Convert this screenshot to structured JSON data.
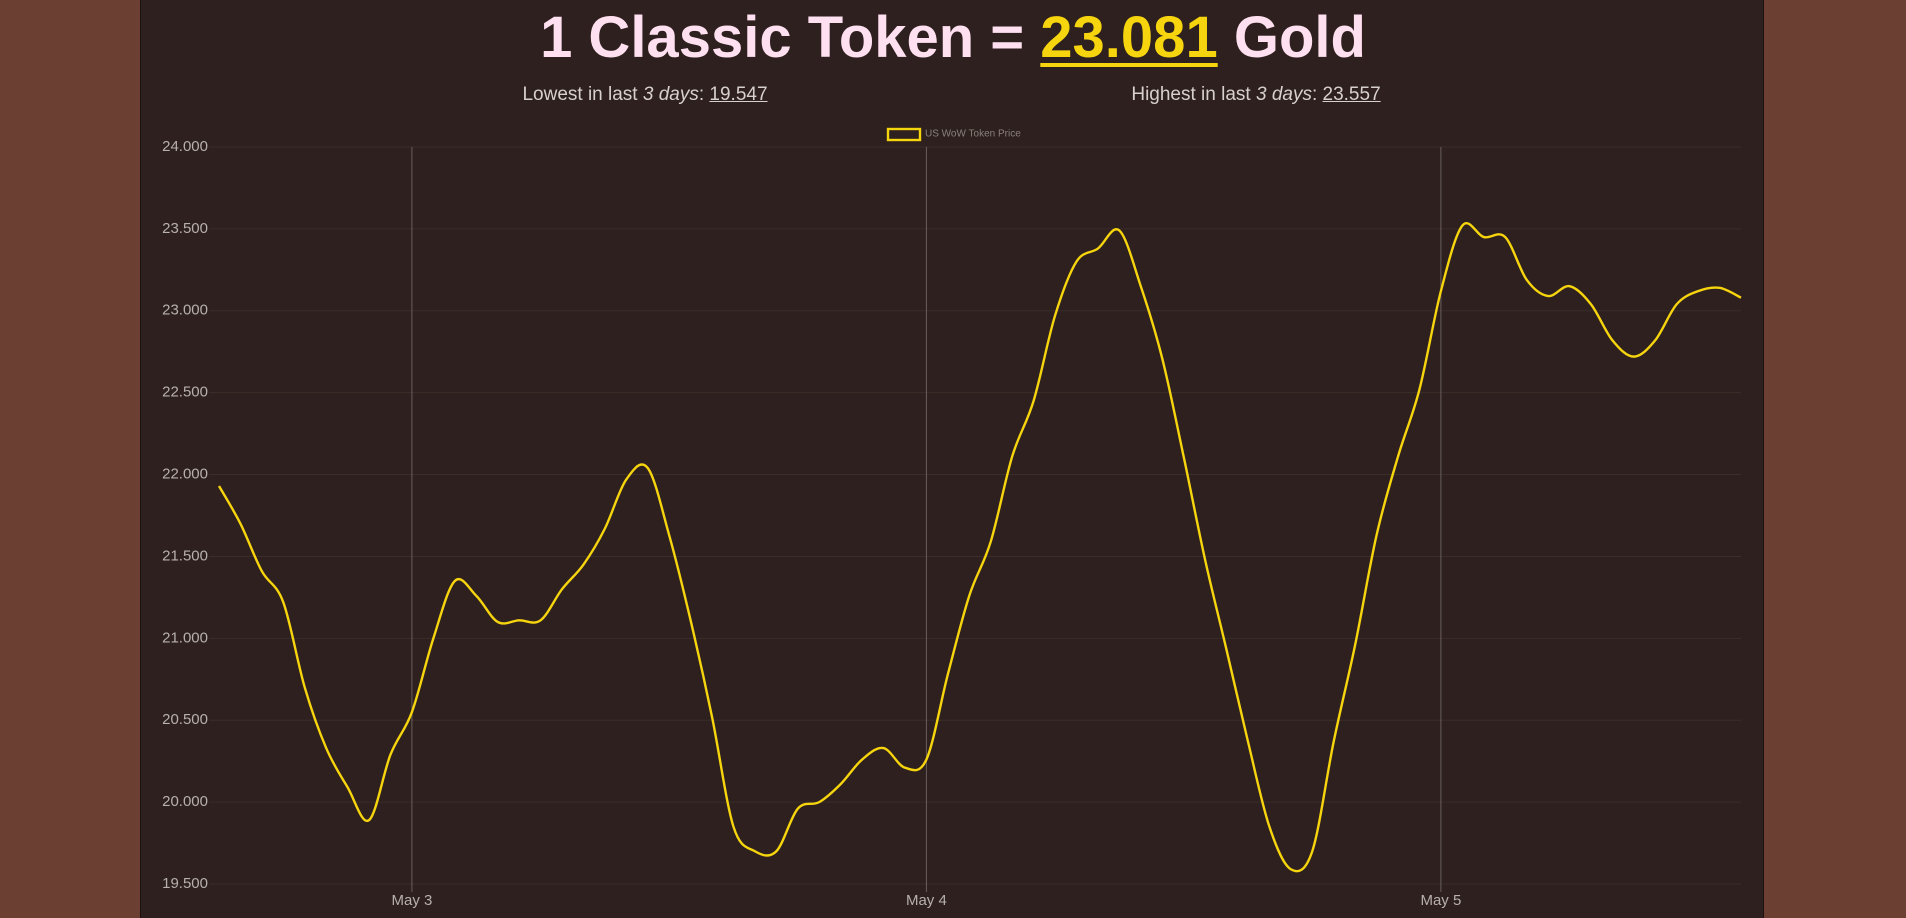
{
  "header": {
    "title": {
      "prefix": "1 Classic Token =",
      "price": "23.081",
      "suffix": "Gold"
    },
    "lowest": {
      "label": "Lowest in last",
      "period": "3 days",
      "separator": ":",
      "value": "19.547"
    },
    "highest": {
      "label": "Highest in last",
      "period": "3 days",
      "separator": ":",
      "value": "23.557"
    }
  },
  "chart_data": {
    "type": "line",
    "categories": [
      null,
      null,
      null,
      null,
      null,
      null,
      null,
      null,
      null,
      "May 3",
      null,
      null,
      null,
      null,
      null,
      null,
      null,
      null,
      null,
      null,
      null,
      null,
      null,
      null,
      null,
      null,
      null,
      null,
      null,
      null,
      null,
      null,
      null,
      "May 4",
      null,
      null,
      null,
      null,
      null,
      null,
      null,
      null,
      null,
      null,
      null,
      null,
      null,
      null,
      null,
      null,
      null,
      null,
      null,
      null,
      null,
      null,
      null,
      "May 5",
      null,
      null,
      null,
      null,
      null,
      null,
      null,
      null,
      null,
      null,
      null,
      null,
      null,
      null
    ],
    "series": [
      {
        "name": "US WoW Token Price",
        "color": "#f6d40e",
        "values": [
          21.93,
          21.7,
          21.41,
          21.22,
          20.7,
          20.33,
          20.09,
          19.89,
          20.29,
          20.55,
          21.0,
          21.35,
          21.26,
          21.1,
          21.11,
          21.11,
          21.3,
          21.45,
          21.67,
          21.97,
          22.04,
          21.63,
          21.11,
          20.52,
          19.85,
          19.7,
          19.7,
          19.96,
          20.0,
          20.11,
          20.26,
          20.33,
          20.21,
          20.26,
          20.78,
          21.26,
          21.59,
          22.11,
          22.45,
          22.97,
          23.3,
          23.38,
          23.49,
          23.15,
          22.71,
          22.11,
          21.48,
          20.93,
          20.37,
          19.85,
          19.59,
          19.7,
          20.37,
          20.96,
          21.63,
          22.11,
          22.52,
          23.12,
          23.52,
          23.45,
          23.45,
          23.19,
          23.09,
          23.15,
          23.04,
          22.82,
          22.72,
          22.82,
          23.04,
          23.12,
          23.14,
          23.08
        ]
      }
    ],
    "ylim": [
      19.5,
      24
    ],
    "yticks": [
      {
        "value": 19.5,
        "label": "19.500"
      },
      {
        "value": 20,
        "label": "20.000"
      },
      {
        "value": 20.5,
        "label": "20.500"
      },
      {
        "value": 21,
        "label": "21.000"
      },
      {
        "value": 21.5,
        "label": "21.500"
      },
      {
        "value": 22,
        "label": "22.000"
      },
      {
        "value": 22.5,
        "label": "22.500"
      },
      {
        "value": 23,
        "label": "23.000"
      },
      {
        "value": 23.5,
        "label": "23.500"
      },
      {
        "value": 24,
        "label": "24.000"
      }
    ],
    "grid": true,
    "legend": "top"
  }
}
